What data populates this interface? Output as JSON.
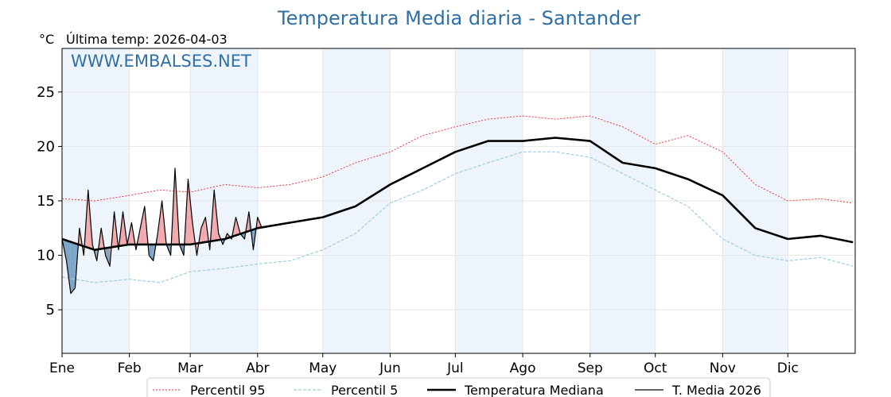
{
  "chart_data": {
    "type": "line",
    "title": "Temperatura Media diaria - Santander",
    "unit_label": "°C",
    "last_temp_label": "Última temp: 2026-04-03",
    "watermark": "WWW.EMBALSES.NET",
    "xlabels": [
      "Ene",
      "Feb",
      "Mar",
      "Abr",
      "May",
      "Jun",
      "Jul",
      "Ago",
      "Sep",
      "Oct",
      "Nov",
      "Dic"
    ],
    "month_start_days": [
      0,
      31,
      59,
      90,
      120,
      151,
      181,
      212,
      243,
      273,
      304,
      334
    ],
    "xlim": [
      0,
      365
    ],
    "ylim": [
      1,
      29
    ],
    "yticks": [
      5,
      10,
      15,
      20,
      25
    ],
    "grid": true,
    "legend_position": "bottom-center",
    "colors": {
      "p95": "#e8262a",
      "p5": "#9ecfe0",
      "median": "#000000",
      "current": "#000000",
      "above_fill": "#f2a9ad",
      "below_fill": "#7ea6c9",
      "shade": "#eef4fb",
      "title": "#2f6fa6"
    },
    "series": [
      {
        "name": "Percentil 95",
        "key": "p95",
        "x": [
          0,
          15,
          31,
          45,
          59,
          75,
          90,
          105,
          120,
          135,
          151,
          166,
          181,
          196,
          212,
          227,
          243,
          258,
          273,
          288,
          304,
          319,
          334,
          349,
          364
        ],
        "values": [
          15.2,
          15.0,
          15.5,
          16.0,
          15.8,
          16.5,
          16.2,
          16.5,
          17.2,
          18.5,
          19.5,
          21.0,
          21.8,
          22.5,
          22.8,
          22.5,
          22.8,
          21.8,
          20.2,
          21.0,
          19.5,
          16.5,
          15.0,
          15.2,
          14.8
        ]
      },
      {
        "name": "Percentil 5",
        "key": "p5",
        "x": [
          0,
          15,
          31,
          45,
          59,
          75,
          90,
          105,
          120,
          135,
          151,
          166,
          181,
          196,
          212,
          227,
          243,
          258,
          273,
          288,
          304,
          319,
          334,
          349,
          364
        ],
        "values": [
          8.0,
          7.5,
          7.8,
          7.5,
          8.5,
          8.8,
          9.2,
          9.5,
          10.5,
          12.0,
          14.8,
          16.0,
          17.5,
          18.5,
          19.5,
          19.5,
          19.0,
          17.5,
          16.0,
          14.5,
          11.5,
          10.0,
          9.5,
          9.8,
          9.0
        ]
      },
      {
        "name": "Temperatura Mediana",
        "key": "median",
        "x": [
          0,
          15,
          31,
          45,
          59,
          75,
          90,
          105,
          120,
          135,
          151,
          166,
          181,
          196,
          212,
          227,
          243,
          258,
          273,
          288,
          304,
          319,
          334,
          349,
          364
        ],
        "values": [
          11.5,
          10.5,
          11.0,
          11.0,
          11.0,
          11.5,
          12.5,
          13.0,
          13.5,
          14.5,
          16.5,
          18.0,
          19.5,
          20.5,
          20.5,
          20.8,
          20.5,
          18.5,
          18.0,
          17.0,
          15.5,
          12.5,
          11.5,
          11.8,
          11.2
        ]
      },
      {
        "name": "T. Media 2026",
        "key": "current",
        "x": [
          0,
          2,
          4,
          6,
          8,
          10,
          12,
          14,
          16,
          18,
          20,
          22,
          24,
          26,
          28,
          30,
          32,
          34,
          36,
          38,
          40,
          42,
          44,
          46,
          48,
          50,
          52,
          54,
          56,
          58,
          60,
          62,
          64,
          66,
          68,
          70,
          72,
          74,
          76,
          78,
          80,
          82,
          84,
          86,
          88,
          90,
          92
        ],
        "values": [
          11.5,
          9.5,
          6.5,
          7.0,
          12.5,
          10.0,
          16.0,
          11.0,
          9.5,
          12.5,
          10.0,
          9.0,
          14.0,
          10.5,
          14.0,
          11.0,
          13.0,
          10.5,
          12.5,
          14.5,
          10.0,
          9.5,
          12.0,
          15.0,
          11.0,
          10.0,
          18.0,
          11.0,
          10.0,
          17.0,
          13.0,
          10.0,
          12.5,
          13.5,
          10.5,
          16.0,
          12.0,
          11.0,
          12.0,
          11.5,
          13.5,
          12.0,
          11.5,
          14.0,
          10.5,
          13.5,
          12.5
        ]
      }
    ]
  }
}
